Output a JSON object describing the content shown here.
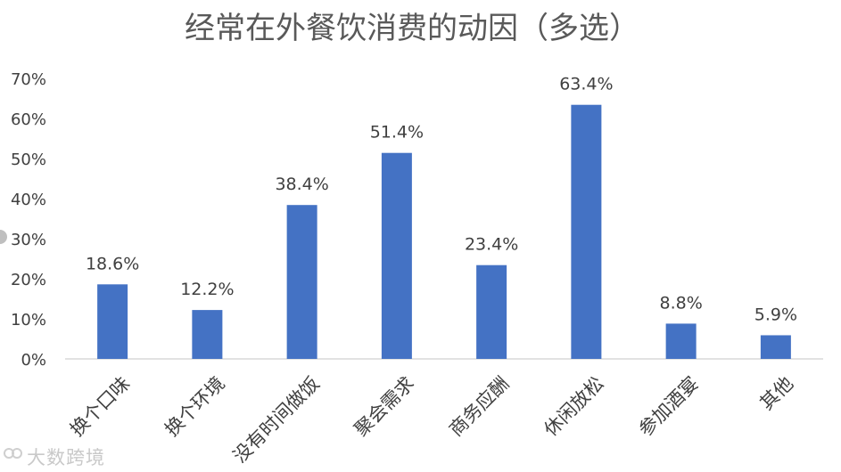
{
  "chart_data": {
    "type": "bar",
    "title": "经常在外餐饮消费的动因（多选）",
    "categories": [
      "换个口味",
      "换个环境",
      "没有时间做饭",
      "聚会需求",
      "商务应酬",
      "休闲放松",
      "参加酒宴",
      "其他"
    ],
    "values": [
      18.6,
      12.2,
      38.4,
      51.4,
      23.4,
      63.4,
      8.8,
      5.9
    ],
    "data_labels": [
      "18.6%",
      "12.2%",
      "38.4%",
      "51.4%",
      "23.4%",
      "63.4%",
      "8.8%",
      "5.9%"
    ],
    "y_ticks": [
      "0%",
      "10%",
      "20%",
      "30%",
      "40%",
      "50%",
      "60%",
      "70%"
    ],
    "ylim": [
      0,
      70
    ],
    "xlabel": "",
    "ylabel": "",
    "grid": false,
    "legend": "none",
    "bar_color": "#4472C4"
  },
  "watermark": "大数跨境"
}
